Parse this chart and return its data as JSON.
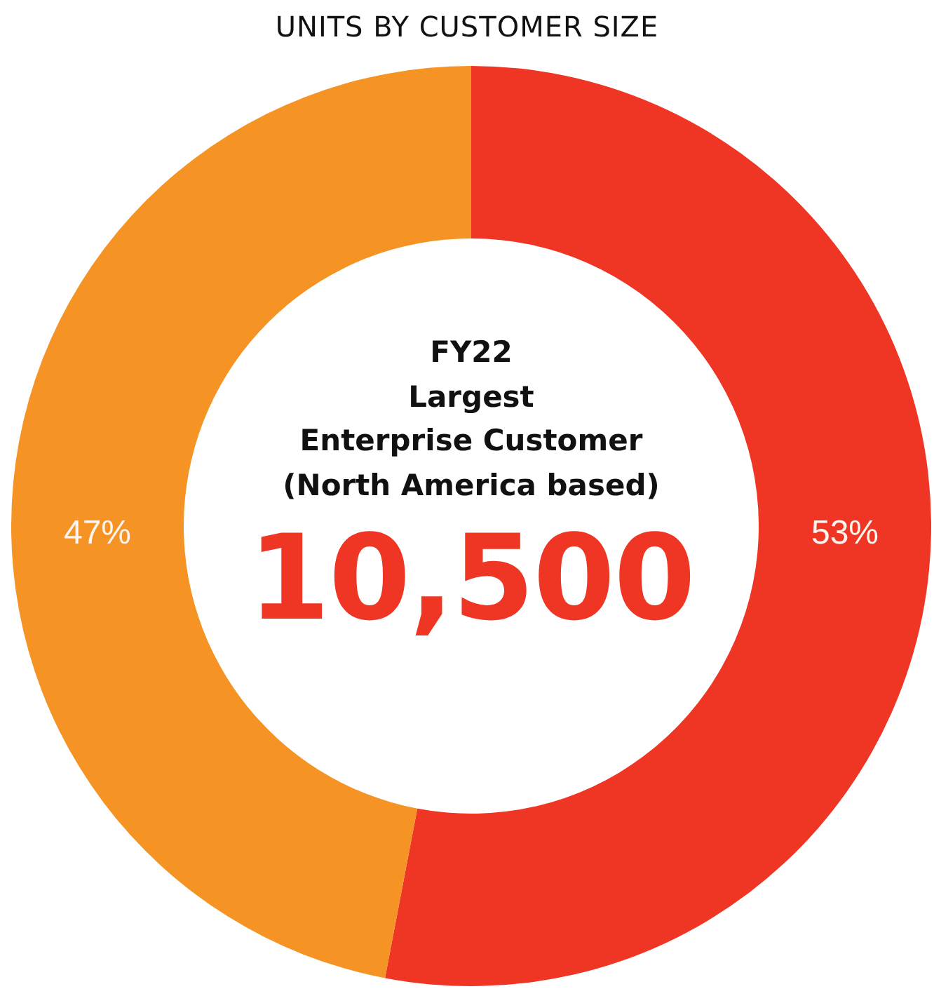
{
  "chart_data": {
    "type": "donut",
    "title": "UNITS BY CUSTOMER SIZE",
    "categories": [
      null,
      null
    ],
    "values": [
      53,
      47
    ],
    "colors": [
      "#ef3624",
      "#f59324"
    ],
    "value_labels": [
      "53%",
      "47%"
    ],
    "legend": false,
    "annotations": [
      "FY22",
      "Largest",
      "Enterprise Customer",
      "(North America based)",
      "10,500"
    ]
  }
}
